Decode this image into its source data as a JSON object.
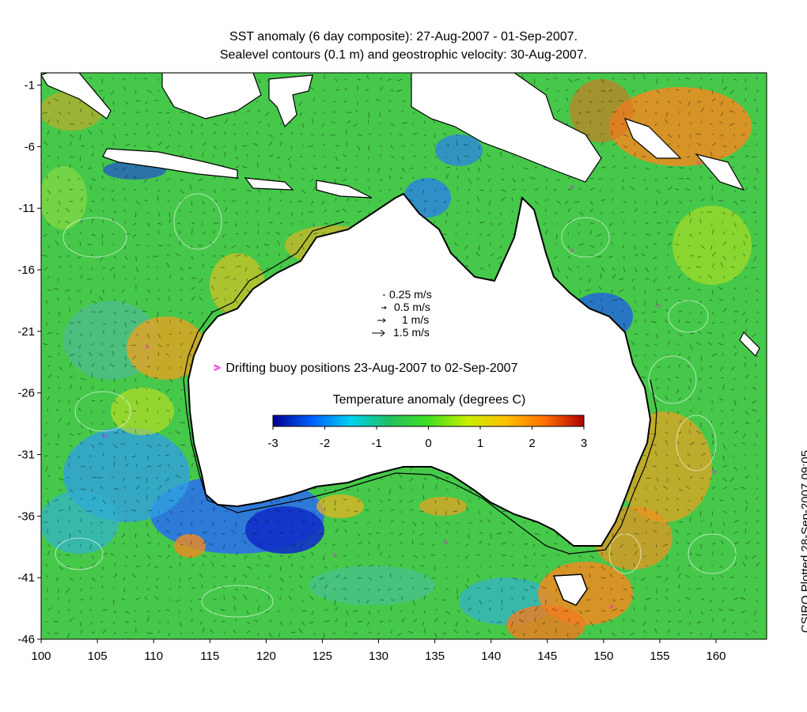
{
  "title": {
    "line1": "SST anomaly (6 day composite): 27-Aug-2007 - 01-Sep-2007.",
    "line2": "Sealevel contours (0.1 m) and geostrophic velocity: 30-Aug-2007."
  },
  "axes": {
    "y_ticks": [
      -1,
      -6,
      -11,
      -16,
      -21,
      -26,
      -31,
      -36,
      -41,
      -46
    ],
    "x_ticks": [
      100,
      105,
      110,
      115,
      120,
      125,
      130,
      135,
      140,
      145,
      150,
      155,
      160
    ],
    "lon_range": [
      100,
      164.5
    ],
    "lat_range": [
      -46,
      0
    ]
  },
  "velocity_legend": [
    {
      "label": "0.25 m/s"
    },
    {
      "label": "0.5 m/s"
    },
    {
      "label": "1 m/s"
    },
    {
      "label": "1.5 m/s"
    }
  ],
  "buoy": {
    "marker": ">",
    "label": "Drifting buoy positions 23-Aug-2007 to 02-Sep-2007",
    "color": "#e020e0"
  },
  "colorbar": {
    "title": "Temperature anomaly (degrees C)",
    "ticks": [
      "-3",
      "-2",
      "-1",
      "0",
      "1",
      "2",
      "3"
    ],
    "range": [
      -3,
      3
    ],
    "colors": [
      "#00008f",
      "#0060ff",
      "#00d0f0",
      "#20c060",
      "#40e020",
      "#c8f000",
      "#ffc000",
      "#ff7000",
      "#b00000"
    ]
  },
  "credit": "CSIRO Plotted 28-Sep-2007 09:05",
  "colors": {
    "ocean_green": "#46c84a",
    "land": "#ffffff",
    "coast": "#000000",
    "contour": "#ffffff",
    "warm": "#f08a20",
    "cool": "#2a7cf0"
  }
}
